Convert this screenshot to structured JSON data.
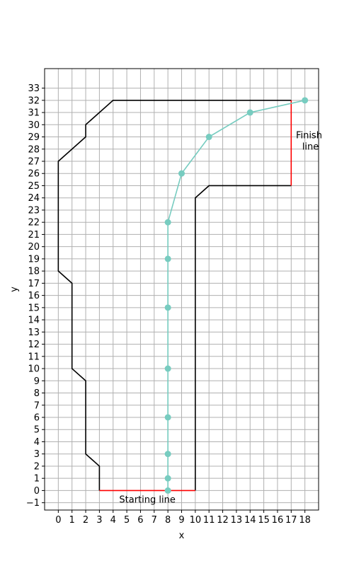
{
  "chart_data": {
    "type": "line",
    "xlabel": "x",
    "ylabel": "y",
    "xlim": [
      -1,
      19
    ],
    "ylim": [
      -1.6,
      34.6
    ],
    "x_ticks": [
      0,
      1,
      2,
      3,
      4,
      5,
      6,
      7,
      8,
      9,
      10,
      11,
      12,
      13,
      14,
      15,
      16,
      17,
      18
    ],
    "y_ticks": [
      -1,
      0,
      1,
      2,
      3,
      4,
      5,
      6,
      7,
      8,
      9,
      10,
      11,
      12,
      13,
      14,
      15,
      16,
      17,
      18,
      19,
      20,
      21,
      22,
      23,
      24,
      25,
      26,
      27,
      28,
      29,
      30,
      31,
      32,
      33
    ],
    "grid": true,
    "track_boundary": {
      "color": "#000000",
      "left": [
        [
          3,
          0
        ],
        [
          3,
          2
        ],
        [
          2,
          3
        ],
        [
          2,
          9
        ],
        [
          1,
          10
        ],
        [
          1,
          17
        ],
        [
          0,
          18
        ],
        [
          0,
          27
        ],
        [
          2,
          29
        ],
        [
          2,
          30
        ],
        [
          4,
          32
        ],
        [
          17,
          32
        ]
      ],
      "right": [
        [
          10,
          0
        ],
        [
          10,
          24
        ],
        [
          11,
          25
        ],
        [
          17,
          25
        ]
      ]
    },
    "starting_line": {
      "label": "Starting line",
      "color": "#ff0000",
      "points": [
        [
          3,
          0
        ],
        [
          10,
          0
        ]
      ]
    },
    "finish_line": {
      "label": "Finish\n line",
      "color": "#ff0000",
      "points": [
        [
          17,
          25
        ],
        [
          17,
          32
        ]
      ]
    },
    "series": [
      {
        "color": "#77ccc0",
        "points": [
          [
            8,
            0
          ],
          [
            8,
            1
          ],
          [
            8,
            3
          ],
          [
            8,
            6
          ],
          [
            8,
            10
          ],
          [
            8,
            15
          ],
          [
            8,
            19
          ],
          [
            8,
            22
          ],
          [
            9,
            26
          ],
          [
            11,
            29
          ],
          [
            14,
            31
          ],
          [
            18,
            32
          ]
        ]
      }
    ]
  }
}
